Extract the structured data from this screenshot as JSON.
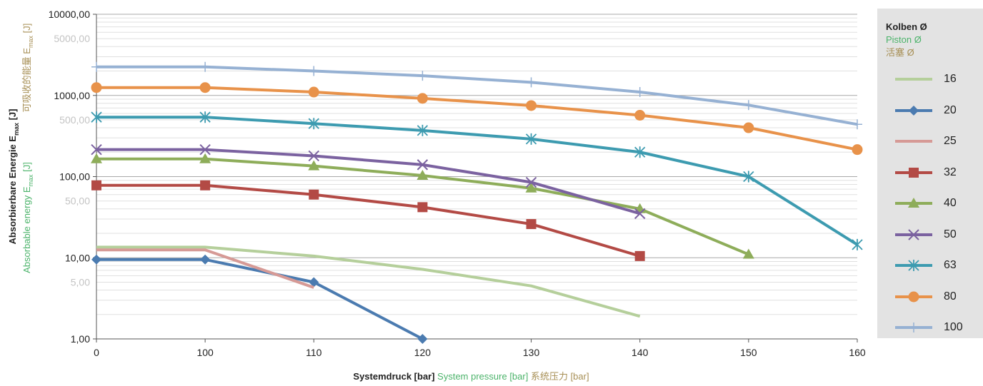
{
  "chart_data": {
    "type": "line",
    "y_scale": "log",
    "ylim": [
      1,
      10000
    ],
    "y_ticks_major": [
      "1,00",
      "10,00",
      "100,00",
      "1000,00",
      "10000,00"
    ],
    "y_ticks_minor": [
      "5,00",
      "50,00",
      "500,00",
      "5000,00"
    ],
    "categories": [
      "0",
      "100",
      "110",
      "120",
      "130",
      "140",
      "150",
      "160"
    ],
    "xlabel": {
      "de": "Systemdruck [bar]",
      "en": "System pressure [bar]",
      "zh": "系统压力 [bar]"
    },
    "ylabel": {
      "de": {
        "pre": "Absorbierbare Energie E",
        "sub": "max",
        "post": " [J]"
      },
      "en": {
        "pre": "Absorbable energy E",
        "sub": "max",
        "post": " [J]"
      },
      "zh": {
        "pre": "可吸收的能量 E",
        "sub": "max",
        "post": " [J]"
      }
    },
    "legend_title": {
      "de": "Kolben Ø",
      "en": "Piston Ø",
      "zh": "活塞 Ø"
    },
    "legend_position": "right",
    "grid": true,
    "series": [
      {
        "name": "16",
        "color": "#b5cf9b",
        "marker": "none",
        "values": [
          13.5,
          13.5,
          10.5,
          7.2,
          4.5,
          1.9,
          null,
          null
        ]
      },
      {
        "name": "20",
        "color": "#4b7bb0",
        "marker": "diamond",
        "values": [
          9.5,
          9.5,
          5.0,
          1.0,
          null,
          null,
          null,
          null
        ]
      },
      {
        "name": "25",
        "color": "#d69a96",
        "marker": "none",
        "values": [
          12.5,
          12.5,
          4.3,
          null,
          null,
          null,
          null,
          null
        ]
      },
      {
        "name": "32",
        "color": "#b34a45",
        "marker": "square",
        "values": [
          78,
          78,
          60,
          42,
          26,
          10.5,
          null,
          null
        ]
      },
      {
        "name": "40",
        "color": "#8ead5a",
        "marker": "triangle",
        "values": [
          165,
          165,
          135,
          103,
          72,
          40,
          11,
          null
        ]
      },
      {
        "name": "50",
        "color": "#7b62a0",
        "marker": "x",
        "values": [
          215,
          215,
          180,
          140,
          85,
          35,
          null,
          null
        ]
      },
      {
        "name": "63",
        "color": "#3d9bb0",
        "marker": "asterisk",
        "values": [
          540,
          540,
          450,
          370,
          290,
          200,
          100,
          14.5
        ]
      },
      {
        "name": "80",
        "color": "#e8924a",
        "marker": "circle",
        "values": [
          1250,
          1250,
          1100,
          920,
          750,
          570,
          400,
          215
        ]
      },
      {
        "name": "100",
        "color": "#96b1d3",
        "marker": "plus",
        "values": [
          2250,
          2250,
          2000,
          1750,
          1450,
          1100,
          760,
          440
        ]
      }
    ]
  }
}
